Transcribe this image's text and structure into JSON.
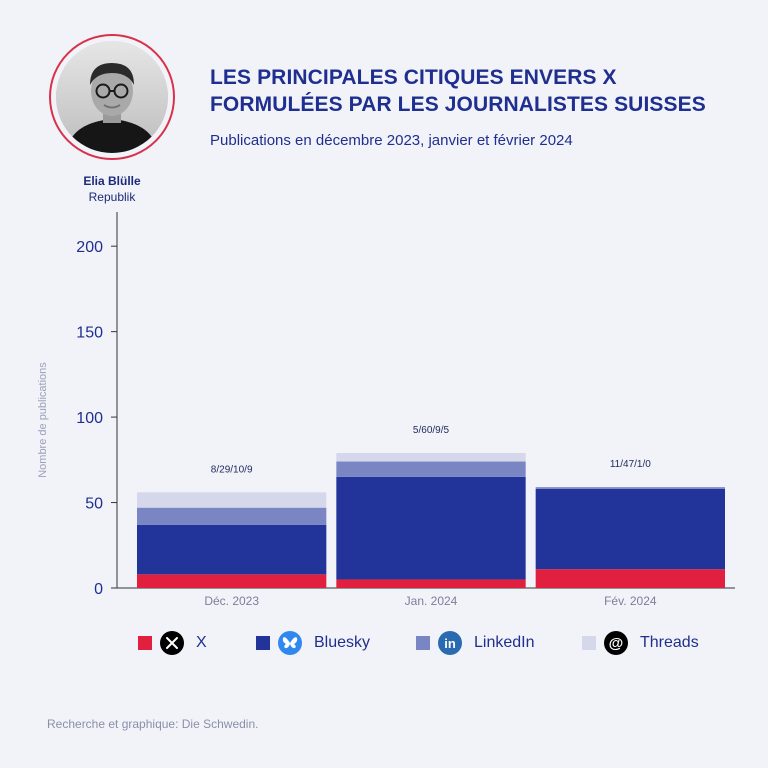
{
  "author": {
    "name": "Elia Blülle",
    "org": "Republik"
  },
  "header": {
    "title": "LES PRINCIPALES CITIQUES ENVERS X FORMULÉES PAR LES JOURNALISTES SUISSES",
    "subtitle": "Publications en décembre 2023, janvier et février 2024"
  },
  "source": "Recherche et graphique: Die Schwedin.",
  "colors": {
    "X": "#e0203e",
    "Bluesky": "#22339a",
    "LinkedIn": "#7a85c4",
    "Threads": "#d5d8ea"
  },
  "legend": [
    {
      "label": "X",
      "icon": "x-logo-icon"
    },
    {
      "label": "Bluesky",
      "icon": "bluesky-butterfly-icon"
    },
    {
      "label": "LinkedIn",
      "icon": "linkedin-logo-icon"
    },
    {
      "label": "Threads",
      "icon": "threads-logo-icon"
    }
  ],
  "chart_data": {
    "type": "bar",
    "stacked": true,
    "categories": [
      "Déc. 2023",
      "Jan. 2024",
      "Fév. 2024"
    ],
    "series": [
      {
        "name": "X",
        "values": [
          8,
          5,
          11
        ]
      },
      {
        "name": "Bluesky",
        "values": [
          29,
          60,
          47
        ]
      },
      {
        "name": "LinkedIn",
        "values": [
          10,
          9,
          1
        ]
      },
      {
        "name": "Threads",
        "values": [
          9,
          5,
          0
        ]
      }
    ],
    "data_labels": [
      "8/29/10/9",
      "5/60/9/5",
      "11/47/1/0"
    ],
    "ylabel": "Nombre de publications",
    "ylim": [
      0,
      220
    ],
    "yticks": [
      0,
      50,
      100,
      150,
      200
    ],
    "grid": false,
    "legend_position": "bottom"
  }
}
